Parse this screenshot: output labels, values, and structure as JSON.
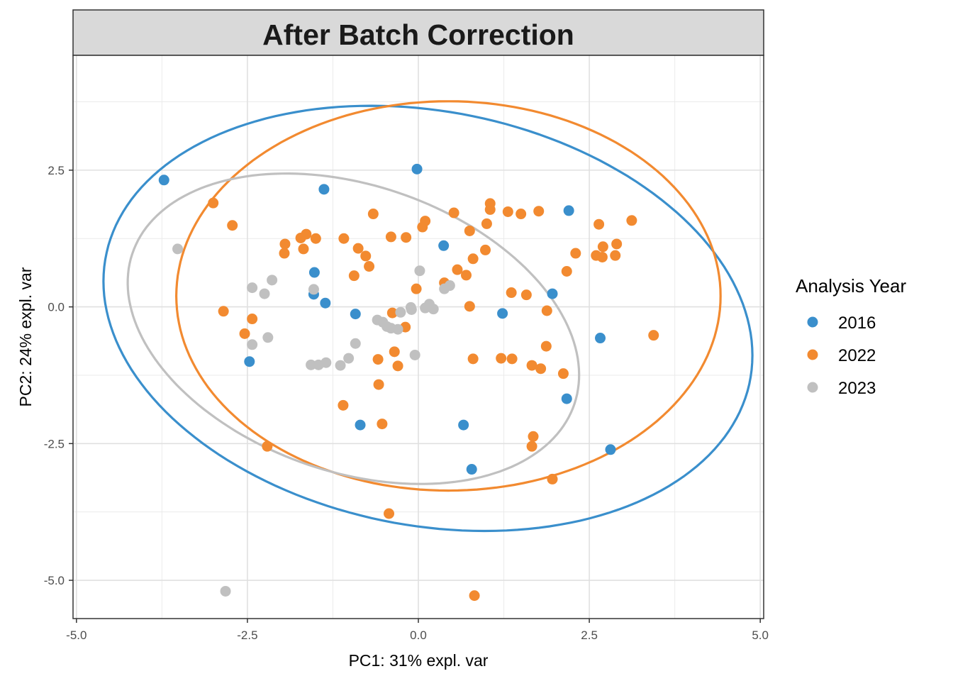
{
  "chart_data": {
    "type": "scatter",
    "title": "After Batch Correction",
    "xlabel": "PC1: 31% expl. var",
    "ylabel": "PC2: 24% expl. var",
    "xlim": [
      -5.05,
      5.05
    ],
    "ylim": [
      -5.7,
      4.6
    ],
    "x_ticks": [
      -5.0,
      -2.5,
      0.0,
      2.5,
      5.0
    ],
    "x_tick_labels": [
      "-5.0",
      "-2.5",
      "0.0",
      "2.5",
      "5.0"
    ],
    "y_ticks": [
      -5.0,
      -2.5,
      0.0,
      2.5
    ],
    "y_tick_labels": [
      "-5.0",
      "-2.5",
      "0.0",
      "2.5"
    ],
    "grid": true,
    "legend": {
      "title": "Analysis Year",
      "position": "right"
    },
    "series": [
      {
        "name": "2016",
        "color": "#3A8FCC",
        "points": [
          [
            -3.72,
            2.32
          ],
          [
            -1.38,
            2.15
          ],
          [
            -0.02,
            2.52
          ],
          [
            2.2,
            1.76
          ],
          [
            0.37,
            1.12
          ],
          [
            -1.52,
            0.63
          ],
          [
            -1.53,
            0.23
          ],
          [
            -1.36,
            0.07
          ],
          [
            -0.92,
            -0.13
          ],
          [
            1.23,
            -0.12
          ],
          [
            1.96,
            0.24
          ],
          [
            -2.47,
            -1.0
          ],
          [
            2.66,
            -0.57
          ],
          [
            2.17,
            -1.68
          ],
          [
            -0.85,
            -2.16
          ],
          [
            0.66,
            -2.16
          ],
          [
            0.78,
            -2.97
          ],
          [
            2.81,
            -2.61
          ]
        ],
        "ellipse": {
          "cx": 0.14,
          "cy": -0.21,
          "rx": 4.87,
          "ry": 3.73,
          "angle_deg": -20.5
        }
      },
      {
        "name": "2022",
        "color": "#F28A30",
        "points": [
          [
            -3.0,
            1.9
          ],
          [
            -2.72,
            1.49
          ],
          [
            -1.95,
            1.15
          ],
          [
            -1.96,
            0.98
          ],
          [
            -1.72,
            1.26
          ],
          [
            -1.64,
            1.33
          ],
          [
            -1.5,
            1.25
          ],
          [
            -1.68,
            1.06
          ],
          [
            -1.09,
            1.25
          ],
          [
            -0.88,
            1.07
          ],
          [
            -0.77,
            0.93
          ],
          [
            -0.72,
            0.74
          ],
          [
            -0.94,
            0.57
          ],
          [
            -0.66,
            1.7
          ],
          [
            -0.4,
            1.28
          ],
          [
            -0.18,
            1.27
          ],
          [
            0.06,
            1.46
          ],
          [
            0.1,
            1.57
          ],
          [
            0.52,
            1.72
          ],
          [
            0.57,
            0.68
          ],
          [
            0.7,
            0.58
          ],
          [
            0.75,
            1.39
          ],
          [
            0.8,
            0.88
          ],
          [
            0.98,
            1.04
          ],
          [
            1.0,
            1.52
          ],
          [
            1.05,
            1.89
          ],
          [
            1.05,
            1.78
          ],
          [
            1.31,
            1.74
          ],
          [
            1.5,
            1.7
          ],
          [
            1.76,
            1.75
          ],
          [
            0.38,
            0.44
          ],
          [
            -0.03,
            0.33
          ],
          [
            1.36,
            0.26
          ],
          [
            1.58,
            0.22
          ],
          [
            1.88,
            -0.07
          ],
          [
            2.17,
            0.65
          ],
          [
            2.3,
            0.98
          ],
          [
            2.6,
            0.94
          ],
          [
            2.64,
            1.51
          ],
          [
            2.69,
            0.91
          ],
          [
            2.7,
            1.1
          ],
          [
            2.9,
            1.15
          ],
          [
            2.88,
            0.94
          ],
          [
            3.12,
            1.58
          ],
          [
            3.44,
            -0.52
          ],
          [
            -2.85,
            -0.08
          ],
          [
            -2.43,
            -0.22
          ],
          [
            -2.54,
            -0.49
          ],
          [
            -0.38,
            -0.11
          ],
          [
            -0.19,
            -0.37
          ],
          [
            0.75,
            0.01
          ],
          [
            -0.35,
            -0.82
          ],
          [
            -0.3,
            -1.08
          ],
          [
            -0.59,
            -0.96
          ],
          [
            -0.58,
            -1.42
          ],
          [
            -1.1,
            -1.8
          ],
          [
            -0.53,
            -2.14
          ],
          [
            0.8,
            -0.95
          ],
          [
            1.21,
            -0.94
          ],
          [
            1.37,
            -0.95
          ],
          [
            1.66,
            -1.07
          ],
          [
            1.79,
            -1.13
          ],
          [
            1.87,
            -0.72
          ],
          [
            2.12,
            -1.22
          ],
          [
            1.68,
            -2.37
          ],
          [
            1.66,
            -2.55
          ],
          [
            1.96,
            -3.15
          ],
          [
            -2.21,
            -2.55
          ],
          [
            -0.43,
            -3.78
          ],
          [
            0.82,
            -5.28
          ]
        ],
        "ellipse": {
          "cx": 0.44,
          "cy": 0.2,
          "rx": 3.98,
          "ry": 3.56,
          "angle_deg": 0
        }
      },
      {
        "name": "2023",
        "color": "#C0C0C0",
        "points": [
          [
            -3.52,
            1.06
          ],
          [
            -2.14,
            0.49
          ],
          [
            -2.43,
            0.35
          ],
          [
            -2.25,
            0.24
          ],
          [
            -1.53,
            0.32
          ],
          [
            -2.43,
            -0.69
          ],
          [
            -2.2,
            -0.56
          ],
          [
            -1.57,
            -1.06
          ],
          [
            -1.46,
            -1.06
          ],
          [
            -1.35,
            -1.02
          ],
          [
            -1.14,
            -1.07
          ],
          [
            -1.02,
            -0.94
          ],
          [
            -0.92,
            -0.67
          ],
          [
            -0.6,
            -0.24
          ],
          [
            -0.52,
            -0.28
          ],
          [
            -0.46,
            -0.36
          ],
          [
            -0.4,
            -0.39
          ],
          [
            -0.3,
            -0.41
          ],
          [
            -0.26,
            -0.1
          ],
          [
            -0.1,
            -0.05
          ],
          [
            0.02,
            0.66
          ],
          [
            0.1,
            -0.02
          ],
          [
            0.16,
            0.05
          ],
          [
            0.22,
            -0.04
          ],
          [
            -0.05,
            -0.88
          ],
          [
            0.38,
            0.33
          ],
          [
            0.46,
            0.39
          ],
          [
            -0.11,
            -0.01
          ],
          [
            -2.82,
            -5.2
          ]
        ],
        "ellipse": {
          "cx": -0.95,
          "cy": -0.4,
          "rx": 3.55,
          "ry": 2.52,
          "angle_deg": -31.5
        }
      }
    ]
  }
}
